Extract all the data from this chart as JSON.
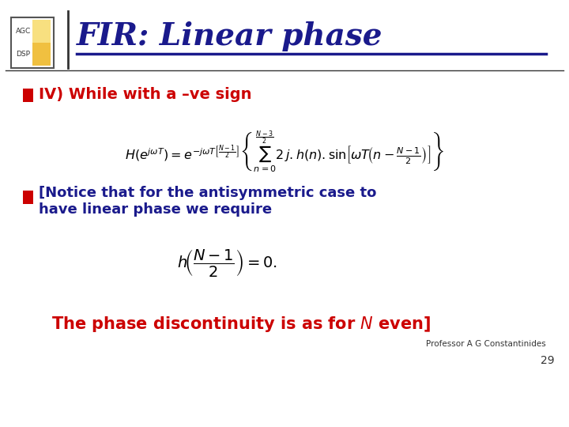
{
  "background_color": "#ffffff",
  "title": "FIR: Linear phase",
  "title_color": "#1a1a8c",
  "title_fontsize": 28,
  "logo_text_top": "AGC",
  "logo_text_bottom": "DSP",
  "bullet_color": "#cc0000",
  "bullet_text_color": "#cc0000",
  "text_color": "#1a1a8c",
  "footer_color": "#cc0000",
  "footer_fontsize": 15,
  "professor": "Professor A G Constantinides",
  "page_number": "29",
  "line_color": "#1a1a8c",
  "dark_line_color": "#333333"
}
